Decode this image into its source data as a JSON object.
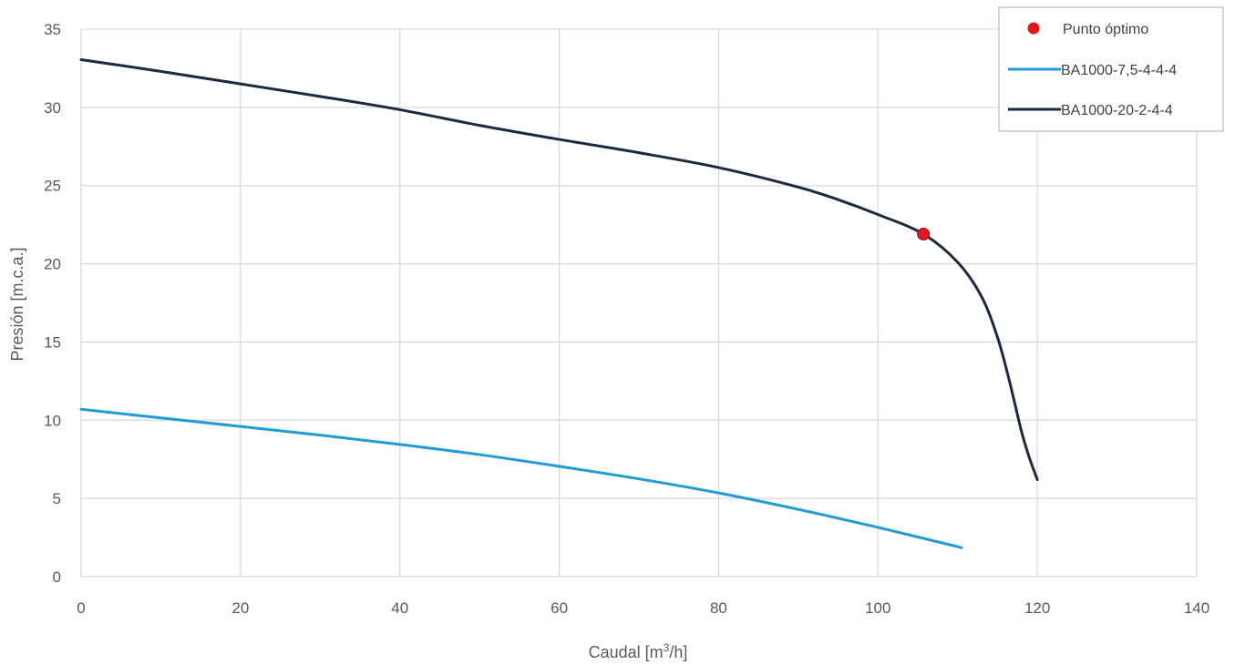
{
  "chart_data": {
    "type": "line",
    "title": "",
    "xlabel_main": "Caudal [m",
    "xlabel_sup": "3",
    "xlabel_end": "/h]",
    "ylabel": "Presión [m.c.a.]",
    "xlim": [
      0,
      140
    ],
    "ylim": [
      0,
      35
    ],
    "x_ticks": [
      0,
      20,
      40,
      60,
      80,
      100,
      120,
      140
    ],
    "y_ticks": [
      0,
      5,
      10,
      15,
      20,
      25,
      30,
      35
    ],
    "grid": true,
    "legend_position": "top-right",
    "series": [
      {
        "name": "BA1000-7,5-4-4-4",
        "color": "#1f9bd7",
        "x": [
          0,
          10,
          20,
          30,
          40,
          50,
          60,
          70,
          80,
          90,
          100,
          110.5
        ],
        "y": [
          10.7,
          10.15,
          9.6,
          9.05,
          8.45,
          7.8,
          7.05,
          6.25,
          5.35,
          4.3,
          3.15,
          1.85
        ]
      },
      {
        "name": "BA1000-20-2-4-4",
        "color": "#1b2a41",
        "x": [
          0,
          10,
          20,
          30,
          40,
          50,
          60,
          70,
          80,
          90,
          95,
          100,
          105.7,
          110,
          113,
          115,
          116.5,
          118,
          119,
          120
        ],
        "y": [
          33.05,
          32.3,
          31.5,
          30.7,
          29.85,
          28.85,
          27.95,
          27.1,
          26.15,
          24.9,
          24.1,
          23.15,
          21.9,
          20.1,
          17.9,
          15.3,
          12.5,
          9.3,
          7.6,
          6.2
        ]
      }
    ],
    "points": [
      {
        "name": "Punto óptimo",
        "color": "#e8141e",
        "x": 105.7,
        "y": 21.9
      }
    ]
  }
}
